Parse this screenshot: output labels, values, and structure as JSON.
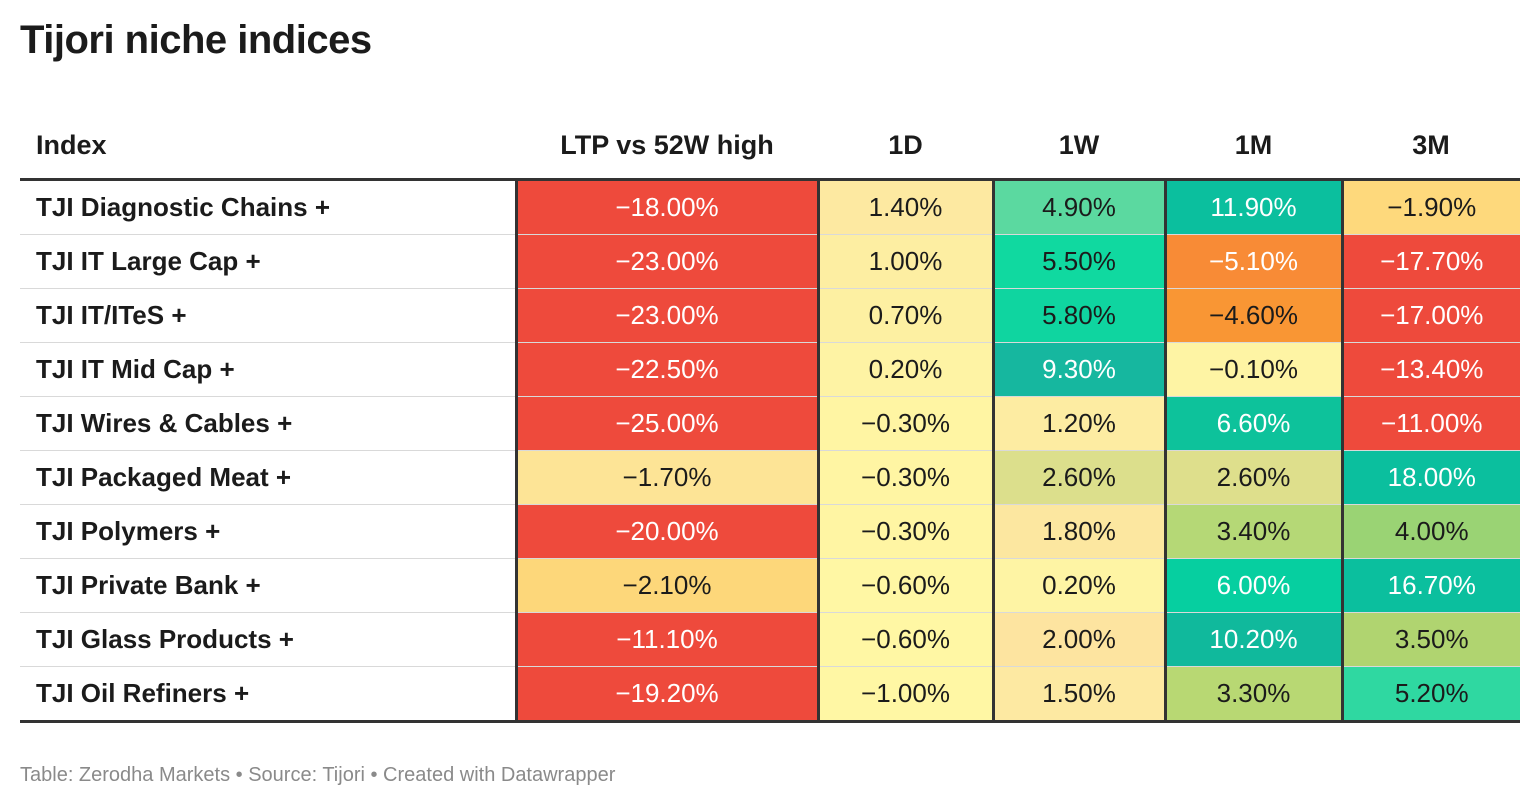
{
  "title": "Tijori niche indices",
  "footer": "Table: Zerodha Markets • Source: Tijori • Created with Datawrapper",
  "chart_data": {
    "type": "table",
    "columns": [
      "Index",
      "LTP vs 52W high",
      "1D",
      "1W",
      "1M",
      "3M"
    ],
    "rows": [
      {
        "index": "TJI Diagnostic Chains +",
        "values": [
          "−18.00%",
          "1.40%",
          "4.90%",
          "11.90%",
          "−1.90%"
        ],
        "colors": [
          "#ee4a3c",
          "#fde9a1",
          "#5bd9a0",
          "#0bbf9e",
          "#fed97c"
        ]
      },
      {
        "index": "TJI IT Large Cap +",
        "values": [
          "−23.00%",
          "1.00%",
          "5.50%",
          "−5.10%",
          "−17.70%"
        ],
        "colors": [
          "#ee4a3c",
          "#fdeea2",
          "#10d9a0",
          "#f88b36",
          "#ee4a3c"
        ]
      },
      {
        "index": "TJI IT/ITeS +",
        "values": [
          "−23.00%",
          "0.70%",
          "5.80%",
          "−4.60%",
          "−17.00%"
        ],
        "colors": [
          "#ee4a3c",
          "#fdf0a2",
          "#0fd5a0",
          "#f99634",
          "#ee4a3c"
        ]
      },
      {
        "index": "TJI IT Mid Cap +",
        "values": [
          "−22.50%",
          "0.20%",
          "9.30%",
          "−0.10%",
          "−13.40%"
        ],
        "colors": [
          "#ee4a3c",
          "#fef3a4",
          "#16b79f",
          "#fef4a4",
          "#ee4a3c"
        ]
      },
      {
        "index": "TJI Wires & Cables +",
        "values": [
          "−25.00%",
          "−0.30%",
          "1.20%",
          "6.60%",
          "−11.00%"
        ],
        "colors": [
          "#ee4a3c",
          "#fff5a3",
          "#fdeca2",
          "#0dc29b",
          "#ee4a3c"
        ]
      },
      {
        "index": "TJI Packaged Meat +",
        "values": [
          "−1.70%",
          "−0.30%",
          "2.60%",
          "2.60%",
          "18.00%"
        ],
        "colors": [
          "#fde496",
          "#fff5a3",
          "#dcdf8c",
          "#dedf8c",
          "#0bbf9e"
        ]
      },
      {
        "index": "TJI Polymers +",
        "values": [
          "−20.00%",
          "−0.30%",
          "1.80%",
          "3.40%",
          "4.00%"
        ],
        "colors": [
          "#ee4a3c",
          "#fff5a3",
          "#fce7a0",
          "#b5d876",
          "#9ad374"
        ]
      },
      {
        "index": "TJI Private Bank +",
        "values": [
          "−2.10%",
          "−0.60%",
          "0.20%",
          "6.00%",
          "16.70%"
        ],
        "colors": [
          "#fdd77a",
          "#fff7a4",
          "#fef4a4",
          "#06cfa0",
          "#0bbf9e"
        ]
      },
      {
        "index": "TJI Glass Products +",
        "values": [
          "−11.10%",
          "−0.60%",
          "2.00%",
          "10.20%",
          "3.50%"
        ],
        "colors": [
          "#ee4a3c",
          "#fff7a4",
          "#fde4a0",
          "#10b99c",
          "#b0d470"
        ]
      },
      {
        "index": "TJI Oil Refiners +",
        "values": [
          "−19.20%",
          "−1.00%",
          "1.50%",
          "3.30%",
          "5.20%"
        ],
        "colors": [
          "#ee4a3c",
          "#fff7a4",
          "#fde9a2",
          "#b8d873",
          "#2fd8a1"
        ]
      }
    ]
  }
}
